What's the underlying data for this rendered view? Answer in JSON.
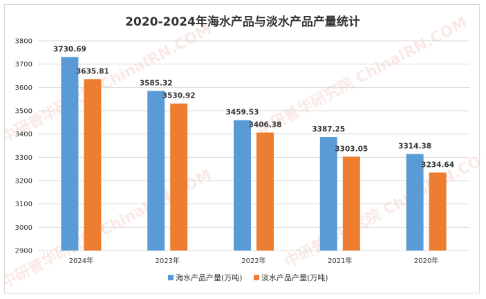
{
  "colors": {
    "series1": "#5b9bd5",
    "series2": "#ed7d31",
    "grid": "#d9d9d9",
    "text": "#333333"
  },
  "chart_data": {
    "type": "bar",
    "title": "2020-2024年海水产品与淡水产品产量统计",
    "categories": [
      "2024年",
      "2023年",
      "2022年",
      "2021年",
      "2020年"
    ],
    "series": [
      {
        "name": "海水产品产量(万吨)",
        "values": [
          3730.69,
          3585.32,
          3459.53,
          3387.25,
          3314.38
        ]
      },
      {
        "name": "淡水产品产量(万吨)",
        "values": [
          3635.81,
          3530.92,
          3406.38,
          3303.05,
          3234.64
        ]
      }
    ],
    "xlabel": "",
    "ylabel": "",
    "ylim": [
      2900,
      3800
    ],
    "yticks": [
      2900,
      3000,
      3100,
      3200,
      3300,
      3400,
      3500,
      3600,
      3700,
      3800
    ],
    "grid": true,
    "legend_position": "bottom",
    "watermark": "中研普华研究院 ChinaIRN.COM"
  }
}
